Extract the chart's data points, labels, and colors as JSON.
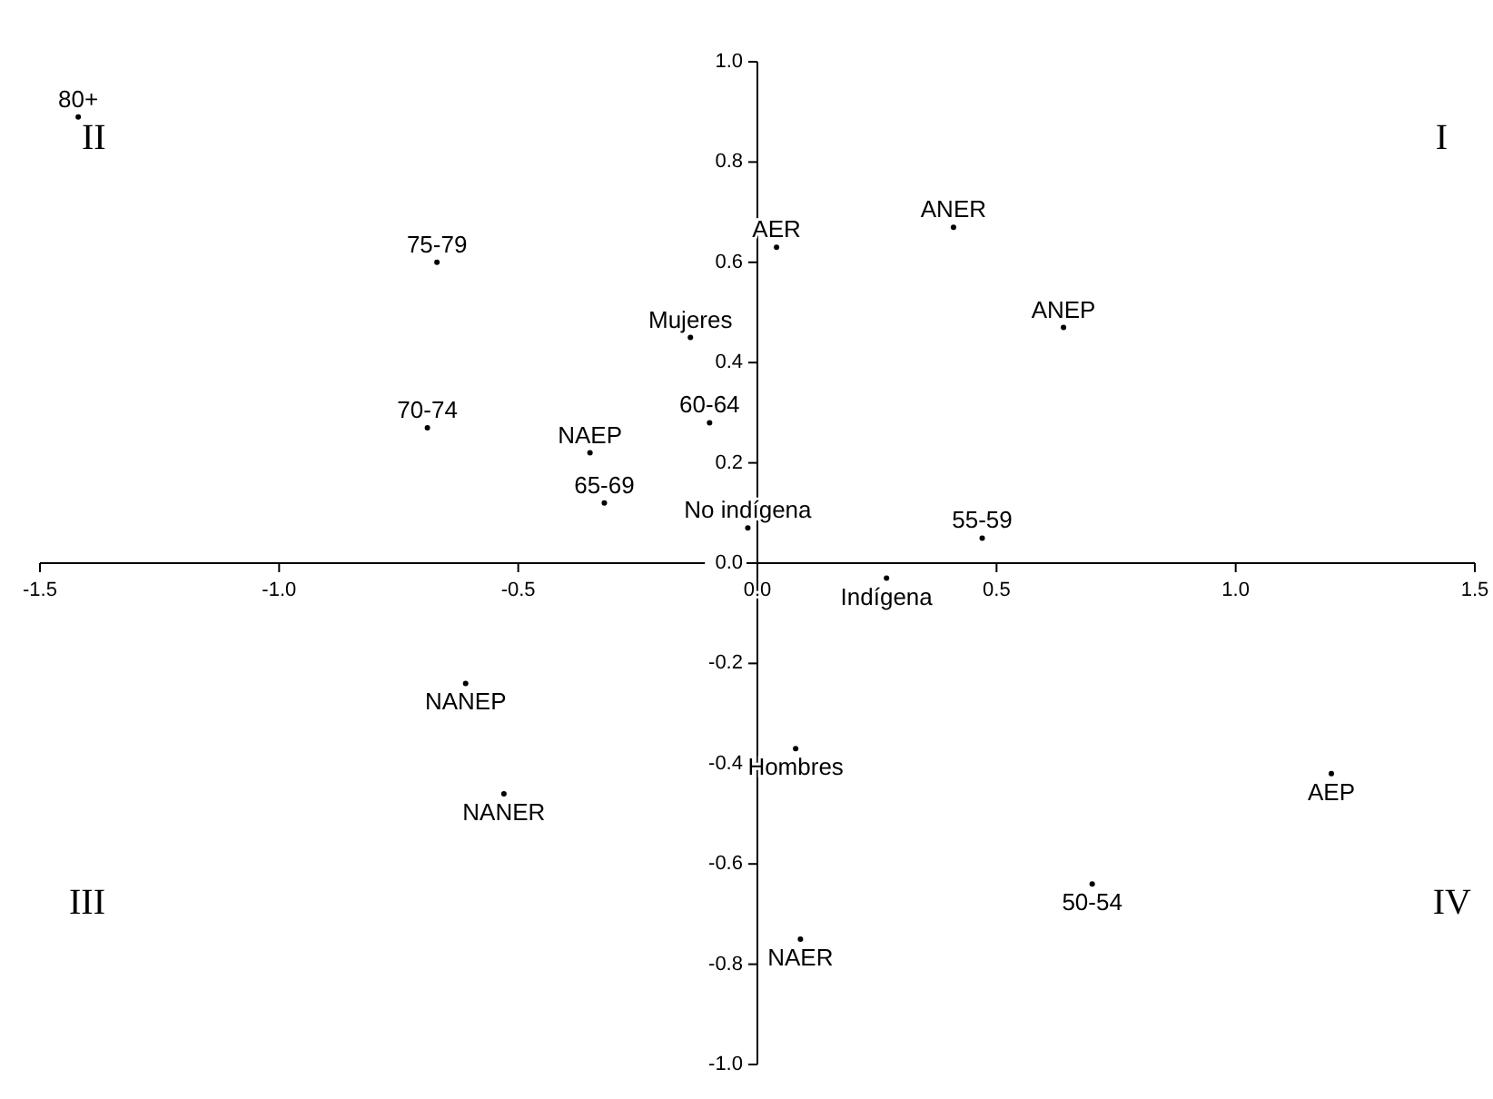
{
  "chart_data": {
    "type": "scatter",
    "marker": "circle",
    "grid": false,
    "xlim": [
      -1.5,
      1.5
    ],
    "xticks": [
      -1.5,
      {
        "value": -1,
        "label": "-1.0"
      },
      -0.5,
      {
        "value": 0,
        "label": "0.0"
      },
      0.5,
      {
        "value": 1,
        "label": "1.0"
      },
      1.5
    ],
    "ylim": [
      -1,
      1
    ],
    "yticks": [
      {
        "value": -1,
        "label": "-1.0"
      },
      -0.8,
      -0.6,
      -0.4,
      -0.2,
      {
        "value": 0,
        "label": "0.0"
      },
      0.2,
      0.4,
      0.6,
      0.8,
      {
        "value": 1,
        "label": "1.0"
      }
    ],
    "annotations": [
      "II",
      "I",
      "III",
      "IV"
    ],
    "series": [
      {
        "name": "80+",
        "color": "#000000",
        "x": [
          -1.42
        ],
        "values": [
          0.89
        ]
      },
      {
        "name": "AER",
        "color": "#000000",
        "x": [
          0.04
        ],
        "values": [
          0.63
        ]
      },
      {
        "name": "ANER",
        "color": "#000000",
        "x": [
          0.41
        ],
        "values": [
          0.67
        ]
      },
      {
        "name": "ANEP",
        "color": "#000000",
        "x": [
          0.64
        ],
        "values": [
          0.47
        ]
      },
      {
        "name": "75-79",
        "color": "#000000",
        "x": [
          -0.67
        ],
        "values": [
          0.6
        ]
      },
      {
        "name": "Mujeres",
        "color": "#000000",
        "x": [
          -0.14
        ],
        "values": [
          0.45
        ]
      },
      {
        "name": "60-64",
        "color": "#000000",
        "x": [
          -0.1
        ],
        "values": [
          0.28
        ]
      },
      {
        "name": "70-74",
        "color": "#000000",
        "x": [
          -0.69
        ],
        "values": [
          0.27
        ]
      },
      {
        "name": "NAEP",
        "color": "#000000",
        "x": [
          -0.35
        ],
        "values": [
          0.22
        ]
      },
      {
        "name": "65-69",
        "color": "#000000",
        "x": [
          -0.32
        ],
        "values": [
          0.12
        ]
      },
      {
        "name": "No indígena",
        "color": "#000000",
        "x": [
          -0.02
        ],
        "values": [
          0.07
        ]
      },
      {
        "name": "55-59",
        "color": "#000000",
        "x": [
          0.47
        ],
        "values": [
          0.05
        ]
      },
      {
        "name": "Indígena",
        "color": "#000000",
        "x": [
          0.27
        ],
        "values": [
          -0.03
        ]
      },
      {
        "name": "NANEP",
        "color": "#000000",
        "x": [
          -0.61
        ],
        "values": [
          -0.24
        ]
      },
      {
        "name": "Hombres",
        "color": "#000000",
        "x": [
          0.08
        ],
        "values": [
          -0.37
        ]
      },
      {
        "name": "AEP",
        "color": "#000000",
        "x": [
          1.2
        ],
        "values": [
          -0.42
        ]
      },
      {
        "name": "NANER",
        "color": "#000000",
        "x": [
          -0.53
        ],
        "values": [
          -0.46
        ]
      },
      {
        "name": "50-54",
        "color": "#000000",
        "x": [
          0.7
        ],
        "values": [
          -0.64
        ]
      },
      {
        "name": "NAER",
        "color": "#000000",
        "x": [
          0.09
        ],
        "values": [
          -0.75
        ]
      }
    ]
  }
}
